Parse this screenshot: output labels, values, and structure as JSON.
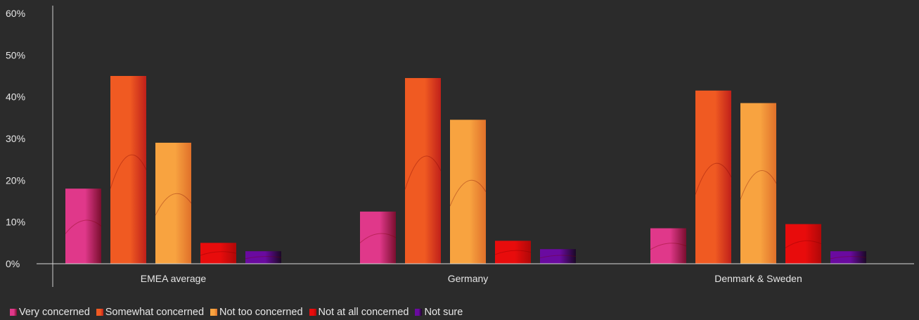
{
  "chart_data": {
    "type": "bar",
    "categories": [
      "EMEA average",
      "Germany",
      "Denmark & Sweden"
    ],
    "series": [
      {
        "name": "Very concerned",
        "values": [
          18,
          12.5,
          8.5
        ],
        "color": "#e0388a"
      },
      {
        "name": "Somewhat concerned",
        "values": [
          45,
          44.5,
          41.5
        ],
        "color": "#f05a22"
      },
      {
        "name": "Not too concerned",
        "values": [
          29,
          34.5,
          38.5
        ],
        "color": "#f8a340"
      },
      {
        "name": "Not at all concerned",
        "values": [
          5,
          5.5,
          9.5
        ],
        "color": "#e80c0c"
      },
      {
        "name": "Not sure",
        "values": [
          3,
          3.5,
          3
        ],
        "color": "#6a0aa0"
      }
    ],
    "y_ticks": [
      "0%",
      "10%",
      "20%",
      "30%",
      "40%",
      "50%",
      "60%"
    ],
    "ylim": [
      0,
      60
    ],
    "grid": false,
    "legend_position": "bottom-left"
  }
}
